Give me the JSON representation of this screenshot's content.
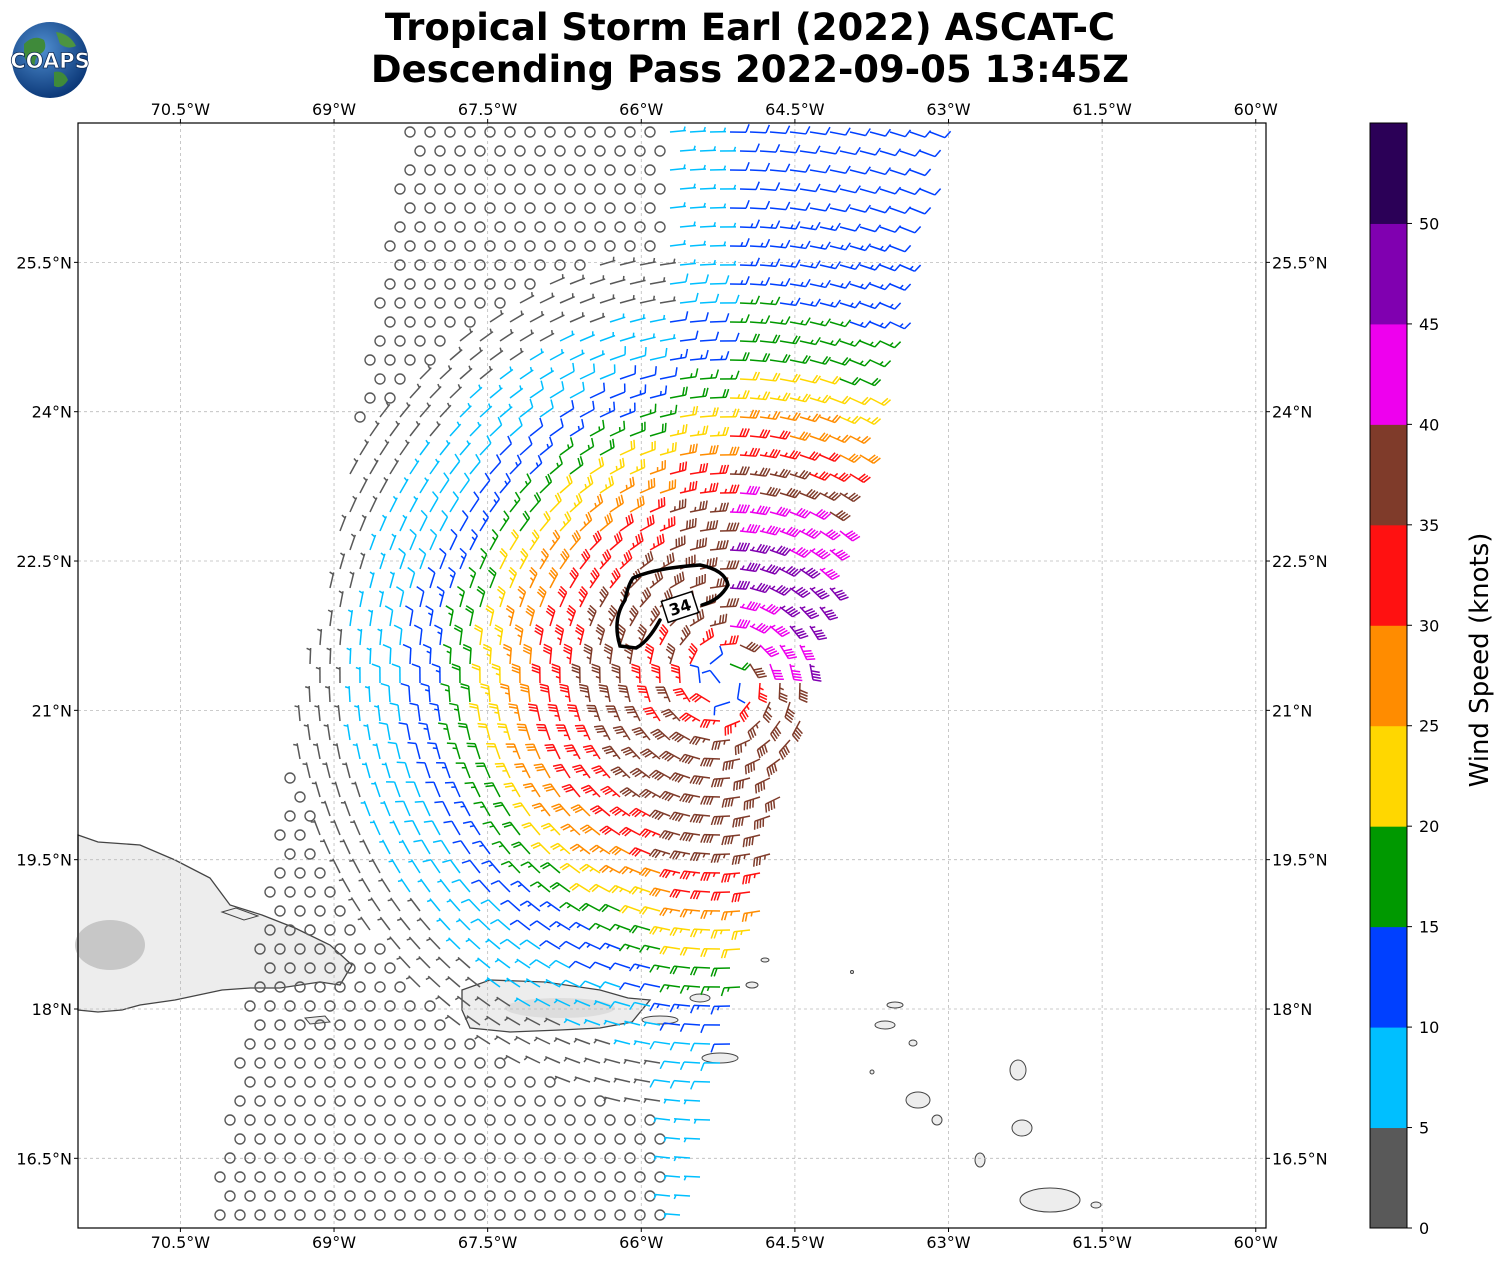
{
  "header": {
    "title_line1": "Tropical Storm Earl (2022) ASCAT-C",
    "title_line2": "Descending Pass 2022-09-05 13:45Z",
    "logo_text": "COAPS"
  },
  "map": {
    "lon_min": -71.5,
    "lon_max": -59.9,
    "lat_min": 15.8,
    "lat_max": 26.9,
    "lon_ticks": [
      "70.5°W",
      "69°W",
      "67.5°W",
      "66°W",
      "64.5°W",
      "63°W",
      "61.5°W",
      "60°W"
    ],
    "lon_tick_values": [
      -70.5,
      -69,
      -67.5,
      -66,
      -64.5,
      -63,
      -61.5,
      -60
    ],
    "lat_ticks": [
      "16.5°N",
      "18°N",
      "19.5°N",
      "21°N",
      "22.5°N",
      "24°N",
      "25.5°N"
    ],
    "lat_tick_values": [
      16.5,
      18,
      19.5,
      21,
      22.5,
      24,
      25.5
    ],
    "contour_label": "34",
    "storm_center": [
      -65.2,
      21.3
    ],
    "colors": {
      "land_fill": "#ededed",
      "coast": "#444444",
      "grid": "#bbbbbb"
    }
  },
  "colorbar": {
    "label": "Wind Speed (knots)",
    "ticks": [
      "0",
      "5",
      "10",
      "15",
      "20",
      "25",
      "30",
      "35",
      "40",
      "45",
      "50"
    ],
    "bins": [
      {
        "min": 0,
        "max": 5,
        "color": "#595959"
      },
      {
        "min": 5,
        "max": 10,
        "color": "#00bfff"
      },
      {
        "min": 10,
        "max": 15,
        "color": "#0040ff"
      },
      {
        "min": 15,
        "max": 20,
        "color": "#009900"
      },
      {
        "min": 20,
        "max": 25,
        "color": "#ffd700"
      },
      {
        "min": 25,
        "max": 30,
        "color": "#ff8c00"
      },
      {
        "min": 30,
        "max": 35,
        "color": "#ff1111"
      },
      {
        "min": 35,
        "max": 40,
        "color": "#7f3b2a"
      },
      {
        "min": 40,
        "max": 45,
        "color": "#ee00ee"
      },
      {
        "min": 45,
        "max": 50,
        "color": "#8000b0"
      },
      {
        "min": 50,
        "max": 55,
        "color": "#2b0057"
      }
    ]
  }
}
